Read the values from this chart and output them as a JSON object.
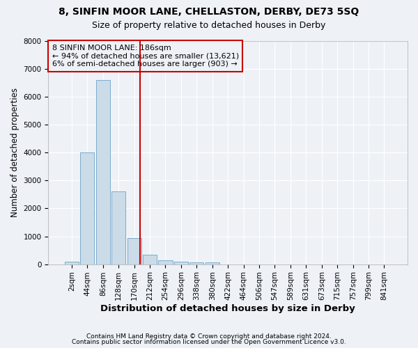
{
  "title": "8, SINFIN MOOR LANE, CHELLASTON, DERBY, DE73 5SQ",
  "subtitle": "Size of property relative to detached houses in Derby",
  "xlabel": "Distribution of detached houses by size in Derby",
  "ylabel": "Number of detached properties",
  "bin_labels": [
    "2sqm",
    "44sqm",
    "86sqm",
    "128sqm",
    "170sqm",
    "212sqm",
    "254sqm",
    "296sqm",
    "338sqm",
    "380sqm",
    "422sqm",
    "464sqm",
    "506sqm",
    "547sqm",
    "589sqm",
    "631sqm",
    "673sqm",
    "715sqm",
    "757sqm",
    "799sqm",
    "841sqm"
  ],
  "bar_heights": [
    80,
    4000,
    6600,
    2600,
    950,
    330,
    130,
    100,
    60,
    60,
    0,
    0,
    0,
    0,
    0,
    0,
    0,
    0,
    0,
    0,
    0
  ],
  "bar_color": "#ccdbe8",
  "bar_edge_color": "#7aaccf",
  "vline_x_index": 4.38,
  "vline_color": "#cc0000",
  "annotation_text": "8 SINFIN MOOR LANE: 186sqm\n← 94% of detached houses are smaller (13,621)\n6% of semi-detached houses are larger (903) →",
  "annotation_box_color": "#cc0000",
  "footnote1": "Contains HM Land Registry data © Crown copyright and database right 2024.",
  "footnote2": "Contains public sector information licensed under the Open Government Licence v3.0.",
  "ylim": [
    0,
    8000
  ],
  "title_fontsize": 10,
  "subtitle_fontsize": 9,
  "xlabel_fontsize": 9.5,
  "ylabel_fontsize": 8.5,
  "tick_fontsize": 7.5,
  "annotation_fontsize": 8,
  "footnote_fontsize": 6.5,
  "background_color": "#eef2f7",
  "grid_color": "#ffffff"
}
